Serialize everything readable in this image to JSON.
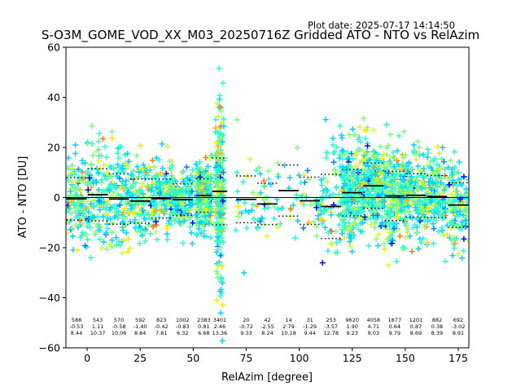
{
  "chart_data": {
    "type": "scatter",
    "plot_date_label": "Plot date: 2025-07-17 14:14:50",
    "title": "S-O3M_GOME_VOD_XX_M03_20250716Z Gridded ATO - NTO vs RelAzim",
    "xlabel": "RelAzim [degree]",
    "ylabel": "ATO - NTO [DU]",
    "xlim": [
      -10,
      180
    ],
    "ylim": [
      -60,
      60
    ],
    "xticks": [
      "0",
      "25",
      "50",
      "75",
      "100",
      "125",
      "150",
      "175"
    ],
    "xtick_values": [
      0,
      25,
      50,
      75,
      100,
      125,
      150,
      175
    ],
    "yticks": [
      "−60",
      "−40",
      "−20",
      "0",
      "20",
      "40",
      "60"
    ],
    "ytick_values": [
      -60,
      -40,
      -20,
      0,
      20,
      40,
      60
    ],
    "marker": "+",
    "colors": [
      "#0000ff",
      "#0080ff",
      "#00d4ff",
      "#29ffce",
      "#7dff7a",
      "#ceff29",
      "#ffe600",
      "#ffb000",
      "#ff7a00"
    ],
    "bin_centers": [
      -5,
      5,
      15,
      25,
      35,
      45,
      55,
      62.5,
      75,
      85,
      95,
      105,
      115,
      125,
      135,
      145,
      155,
      165,
      175
    ],
    "bins": [
      {
        "count": "588",
        "mean": "-0.53",
        "std": "8.44",
        "mean_val": -0.53,
        "std_val": 8.44
      },
      {
        "count": "543",
        "mean": "1.11",
        "std": "10.37",
        "mean_val": 1.11,
        "std_val": 10.37
      },
      {
        "count": "570",
        "mean": "-0.58",
        "std": "10.06",
        "mean_val": -0.58,
        "std_val": 10.06
      },
      {
        "count": "592",
        "mean": "-1.40",
        "std": "8.84",
        "mean_val": -1.4,
        "std_val": 8.84
      },
      {
        "count": "823",
        "mean": "-0.42",
        "std": "7.81",
        "mean_val": -0.42,
        "std_val": 7.81
      },
      {
        "count": "1002",
        "mean": "-0.83",
        "std": "6.32",
        "mean_val": -0.83,
        "std_val": 6.32
      },
      {
        "count": "2383",
        "mean": "0.81",
        "std": "6.68",
        "mean_val": 0.81,
        "std_val": 6.68
      },
      {
        "count": "3401",
        "mean": "2.46",
        "std": "13.36",
        "mean_val": 2.46,
        "std_val": 13.36
      },
      {
        "count": "20",
        "mean": "-0.72",
        "std": "9.33",
        "mean_val": -0.72,
        "std_val": 9.33
      },
      {
        "count": "42",
        "mean": "-2.55",
        "std": "8.24",
        "mean_val": -2.55,
        "std_val": 8.24
      },
      {
        "count": "14",
        "mean": "2.79",
        "std": "10.18",
        "mean_val": 2.79,
        "std_val": 10.18
      },
      {
        "count": "31",
        "mean": "-1.29",
        "std": "9.44",
        "mean_val": -1.29,
        "std_val": 9.44
      },
      {
        "count": "253",
        "mean": "-3.57",
        "std": "12.78",
        "mean_val": -3.57,
        "std_val": 12.78
      },
      {
        "count": "9620",
        "mean": "1.90",
        "std": "9.23",
        "mean_val": 1.9,
        "std_val": 9.23
      },
      {
        "count": "4058",
        "mean": "4.71",
        "std": "9.03",
        "mean_val": 4.71,
        "std_val": 9.03
      },
      {
        "count": "1877",
        "mean": "0.64",
        "std": "9.79",
        "mean_val": 0.64,
        "std_val": 9.79
      },
      {
        "count": "1201",
        "mean": "0.87",
        "std": "8.69",
        "mean_val": 0.87,
        "std_val": 8.69
      },
      {
        "count": "882",
        "mean": "0.38",
        "std": "8.39",
        "mean_val": 0.38,
        "std_val": 8.39
      },
      {
        "count": "692",
        "mean": "-3.02",
        "std": "8.91",
        "mean_val": -3.02,
        "std_val": 8.91
      }
    ],
    "grid": false,
    "legend": "none"
  }
}
